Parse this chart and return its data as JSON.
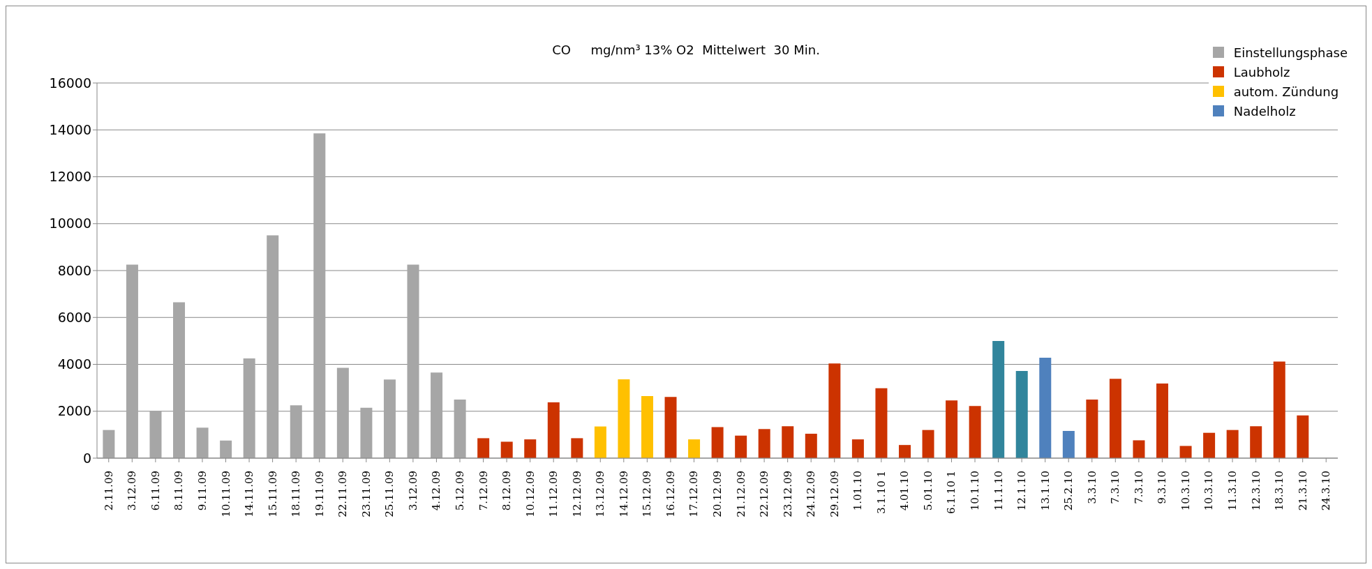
{
  "chart_data": {
    "type": "bar",
    "title": "CO     mg/nm³ 13% O2  Mittelwert  30 Min.",
    "stacked": true,
    "categories": [
      "2.11.09",
      "3.12.09",
      "6.11.09",
      "8.11.09",
      "9.11.09",
      "10.11.09",
      "14.11.09",
      "15.11.09",
      "18.11.09",
      "19.11.09",
      "22.11.09",
      "23.11.09",
      "25.11.09",
      "3.12.09",
      "4.12.09",
      "5.12.09",
      "7.12.09",
      "8.12.09",
      "10.12.09",
      "11.12.09",
      "12.12.09",
      "13.12.09",
      "14.12.09",
      "15.12.09",
      "16.12.09",
      "17.12.09",
      "20.12.09",
      "21.12.09",
      "22.12.09",
      "23.12.09",
      "24.12.09",
      "29.12.09",
      "1.01.10",
      "3.1.10 1",
      "4.01.10",
      "5.01.10",
      "6.1.10 1",
      "10.1.10",
      "11.1.10",
      "12.1.10",
      "13.1.10",
      "25.2.10",
      "3.3.10",
      "7.3.10",
      "7.3.10",
      "9.3.10",
      "10.3.10",
      "10.3.10",
      "11.3.10",
      "12.3.10",
      "18.3.10",
      "21.3.10",
      "24.3.10"
    ],
    "series": [
      {
        "name": "Einstellungsphase",
        "color": "#a6a6a6",
        "values": [
          1200,
          8250,
          2000,
          6650,
          1300,
          750,
          4250,
          9500,
          2250,
          13850,
          3850,
          2150,
          3350,
          8250,
          3650,
          2500,
          null,
          null,
          null,
          null,
          null,
          null,
          null,
          null,
          null,
          null,
          null,
          null,
          null,
          null,
          null,
          null,
          null,
          null,
          null,
          null,
          null,
          null,
          null,
          null,
          null,
          null,
          null,
          null,
          null,
          null,
          null,
          null,
          null,
          null,
          null,
          null,
          null
        ]
      },
      {
        "name": "Laubholz",
        "color": "#cc3300",
        "values": [
          null,
          null,
          null,
          null,
          null,
          null,
          null,
          null,
          null,
          null,
          null,
          null,
          null,
          null,
          null,
          null,
          850,
          700,
          800,
          2380,
          850,
          null,
          null,
          null,
          2610,
          null,
          1320,
          960,
          1240,
          1360,
          1040,
          4040,
          800,
          2980,
          560,
          1200,
          2460,
          2220,
          null,
          null,
          null,
          null,
          2500,
          3380,
          760,
          3180,
          520,
          1080,
          1200,
          1360,
          4120,
          1820,
          null
        ]
      },
      {
        "name": "autom. Zündung",
        "color": "#ffc000",
        "values": [
          null,
          null,
          null,
          null,
          null,
          null,
          null,
          null,
          null,
          null,
          null,
          null,
          null,
          null,
          null,
          null,
          null,
          null,
          null,
          null,
          null,
          1350,
          3360,
          2650,
          null,
          800,
          null,
          null,
          null,
          null,
          null,
          null,
          null,
          null,
          null,
          null,
          null,
          null,
          null,
          null,
          null,
          null,
          null,
          null,
          null,
          null,
          null,
          null,
          null,
          null,
          null,
          null,
          null
        ]
      },
      {
        "name": "Nadelholz",
        "color": "#4f81bd",
        "colors": [
          null,
          null,
          null,
          null,
          null,
          null,
          null,
          null,
          null,
          null,
          null,
          null,
          null,
          null,
          null,
          null,
          null,
          null,
          null,
          null,
          null,
          null,
          null,
          null,
          null,
          null,
          null,
          null,
          null,
          null,
          null,
          null,
          null,
          null,
          null,
          null,
          null,
          null,
          "#31859c",
          "#31859c",
          "#4f81bd",
          "#4f81bd",
          null,
          null,
          null,
          null,
          null,
          null,
          null,
          null,
          null,
          null,
          null
        ],
        "values": [
          null,
          null,
          null,
          null,
          null,
          null,
          null,
          null,
          null,
          null,
          null,
          null,
          null,
          null,
          null,
          null,
          null,
          null,
          null,
          null,
          null,
          null,
          null,
          null,
          null,
          null,
          null,
          null,
          null,
          null,
          null,
          null,
          null,
          null,
          null,
          null,
          null,
          null,
          5000,
          3720,
          4280,
          1160,
          null,
          null,
          null,
          null,
          null,
          null,
          null,
          null,
          null,
          null,
          null
        ]
      }
    ],
    "ylim": [
      0,
      16000
    ],
    "yticks": [
      0,
      2000,
      4000,
      6000,
      8000,
      10000,
      12000,
      14000,
      16000
    ],
    "grid": "y",
    "legend": "top right"
  }
}
